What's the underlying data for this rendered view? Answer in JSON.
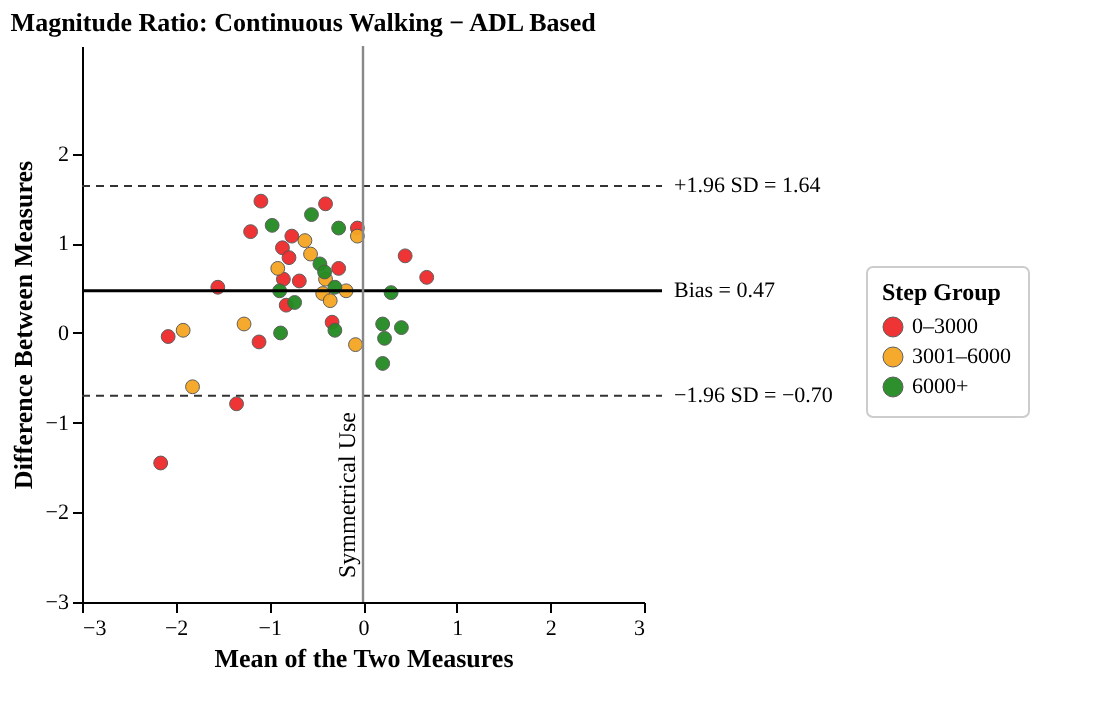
{
  "chart_data": {
    "type": "scatter",
    "title": "Magnitude Ratio: Continuous Walking − ADL Based",
    "xlabel": "Mean of the Two Measures",
    "ylabel": "Difference Between Measures",
    "legend_title": "Step Group",
    "legend": "right",
    "grid": false,
    "marker": "circle",
    "xlim": [
      -3,
      3
    ],
    "xticks": [
      -3,
      -2,
      -1,
      0,
      1,
      2,
      3
    ],
    "ylim": [
      -3,
      3.2
    ],
    "yticks": [
      -3,
      -2,
      -1,
      0,
      1,
      2
    ],
    "series": [
      {
        "name": "0–3000",
        "color": "#ee2a2a",
        "x": [
          -1.09,
          -0.4,
          -1.2,
          -0.76,
          -0.06,
          -0.86,
          -0.79,
          -0.26,
          0.45,
          0.68,
          -1.55,
          -0.85,
          -0.68,
          -0.82,
          -0.33,
          -2.08,
          -1.11,
          -1.35,
          -2.16
        ],
        "values": [
          1.47,
          1.44,
          1.13,
          1.08,
          1.17,
          0.95,
          0.84,
          0.72,
          0.86,
          0.62,
          0.51,
          0.6,
          0.58,
          0.31,
          0.12,
          -0.04,
          -0.1,
          -0.79,
          -1.45
        ]
      },
      {
        "name": "3001–6000",
        "color": "#f5a623",
        "x": [
          -0.62,
          -0.06,
          -0.56,
          -0.91,
          -0.4,
          -0.18,
          -0.43,
          -0.35,
          -1.92,
          -1.27,
          -0.08,
          -1.82
        ],
        "values": [
          1.03,
          1.08,
          0.88,
          0.72,
          0.6,
          0.47,
          0.44,
          0.36,
          0.03,
          0.1,
          -0.13,
          -0.6
        ]
      },
      {
        "name": "6000+",
        "color": "#228b22",
        "x": [
          -0.97,
          -0.55,
          -0.26,
          -0.46,
          -0.41,
          -0.3,
          -0.89,
          -0.73,
          0.3,
          -0.88,
          -0.3,
          0.21,
          0.41,
          0.23,
          0.21
        ],
        "values": [
          1.2,
          1.32,
          1.17,
          0.77,
          0.68,
          0.51,
          0.47,
          0.34,
          0.45,
          0.0,
          0.03,
          0.1,
          0.06,
          -0.06,
          -0.34
        ]
      }
    ],
    "ref_lines": [
      {
        "axis": "y",
        "value": 1.64,
        "label": "+1.96 SD = 1.64",
        "color": "#333333",
        "line_style": "dashed"
      },
      {
        "axis": "y",
        "value": 0.47,
        "label": "Bias = 0.47",
        "color": "#000000",
        "line_style": "solid"
      },
      {
        "axis": "y",
        "value": -0.7,
        "label": "−1.96 SD = −0.70",
        "color": "#333333",
        "line_style": "dashed"
      },
      {
        "axis": "x",
        "value": 0,
        "label": "Symmetrical Use",
        "color": "#888888",
        "line_style": "solid"
      }
    ]
  }
}
